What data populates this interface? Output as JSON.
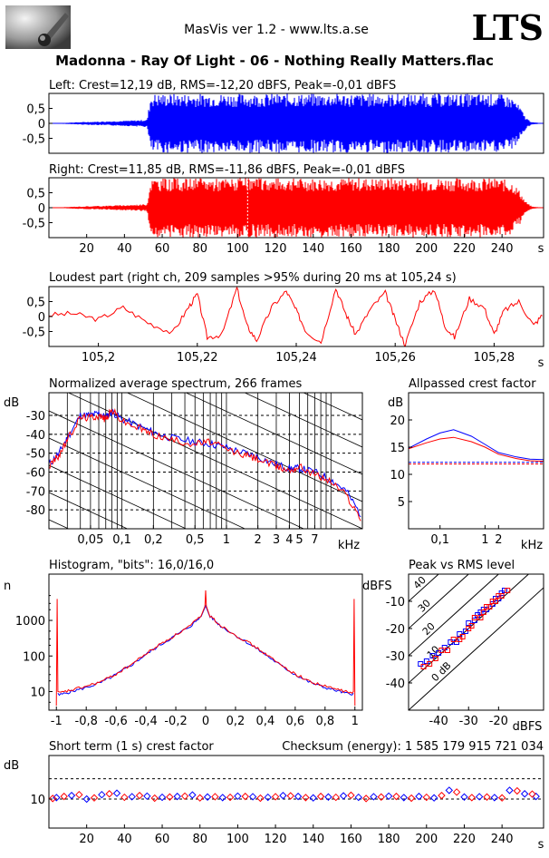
{
  "header": {
    "app_title": "MasVis ver 1.2 - www.lts.a.se",
    "brand": "LTS",
    "file_title": "Madonna - Ray Of Light - 06 - Nothing Really Matters.flac",
    "logo_icon": "microphone-photo-icon"
  },
  "colors": {
    "left": "#0000ff",
    "right": "#ff0000",
    "grid": "#000000"
  },
  "chart_data": [
    {
      "id": "left",
      "type": "area",
      "title": "Left: Crest=12,19 dB, RMS=-12,20 dBFS, Peak=-0,01 dBFS",
      "y_ticks": [
        "0,5",
        "0",
        "-0,5"
      ],
      "ylim": [
        -1,
        1
      ],
      "xlim": [
        0,
        262
      ],
      "envelope": {
        "x": [
          0,
          5,
          15,
          30,
          45,
          52,
          54,
          60,
          120,
          180,
          230,
          240,
          246,
          250,
          252,
          254,
          256,
          262
        ],
        "amp": [
          0,
          0.01,
          0.04,
          0.07,
          0.1,
          0.13,
          0.99,
          0.99,
          0.99,
          0.99,
          0.99,
          0.97,
          0.85,
          0.5,
          0.25,
          0.12,
          0.04,
          0
        ]
      }
    },
    {
      "id": "right",
      "type": "area",
      "title": "Right: Crest=11,85 dB, RMS=-11,86 dBFS, Peak=-0,01 dBFS",
      "y_ticks": [
        "0,5",
        "0",
        "-0,5"
      ],
      "x_ticks": [
        "20",
        "40",
        "60",
        "80",
        "100",
        "120",
        "140",
        "160",
        "180",
        "200",
        "220",
        "240"
      ],
      "x_tick_values": [
        20,
        40,
        60,
        80,
        100,
        120,
        140,
        160,
        180,
        200,
        220,
        240
      ],
      "x_unit": "s",
      "ylim": [
        -1,
        1
      ],
      "xlim": [
        0,
        262
      ],
      "peak_marker_x": 105.24,
      "envelope": {
        "x": [
          0,
          5,
          15,
          30,
          45,
          52,
          54,
          60,
          120,
          180,
          230,
          240,
          246,
          250,
          252,
          254,
          256,
          262
        ],
        "amp": [
          0,
          0.01,
          0.04,
          0.07,
          0.1,
          0.13,
          0.99,
          0.99,
          0.99,
          0.99,
          0.99,
          0.97,
          0.85,
          0.5,
          0.25,
          0.12,
          0.04,
          0
        ]
      }
    },
    {
      "id": "loudest",
      "type": "line",
      "title": "Loudest part (right ch, 209 samples >95% during 20 ms at 105,24 s)",
      "y_ticks": [
        "0,5",
        "0",
        "-0,5"
      ],
      "x_ticks": [
        "105,2",
        "105,22",
        "105,24",
        "105,26",
        "105,28"
      ],
      "x_tick_values": [
        105.2,
        105.22,
        105.24,
        105.26,
        105.28
      ],
      "x_unit": "s",
      "xlim": [
        105.19,
        105.29
      ],
      "ylim": [
        -1,
        1
      ],
      "x": [
        105.19,
        105.195,
        105.2,
        105.205,
        105.21,
        105.215,
        105.218,
        105.22,
        105.222,
        105.225,
        105.228,
        105.23,
        105.232,
        105.235,
        105.238,
        105.24,
        105.242,
        105.245,
        105.248,
        105.25,
        105.252,
        105.255,
        105.258,
        105.26,
        105.262,
        105.265,
        105.268,
        105.27,
        105.272,
        105.275,
        105.278,
        105.28,
        105.282,
        105.285,
        105.288,
        105.29
      ],
      "y": [
        0.05,
        0.1,
        -0.1,
        0.3,
        -0.2,
        -0.55,
        0.25,
        0.75,
        -0.7,
        -0.6,
        0.95,
        -0.3,
        -0.8,
        0.3,
        0.85,
        0.2,
        -0.5,
        -0.85,
        0.95,
        0.1,
        -0.6,
        0.25,
        0.8,
        -0.1,
        -0.95,
        0.5,
        0.9,
        -0.3,
        -0.7,
        0.6,
        0.3,
        -0.6,
        0.2,
        0.5,
        -0.3,
        0.1
      ]
    },
    {
      "id": "spectrum",
      "type": "line",
      "title": "Normalized average spectrum, 266 frames",
      "ylabel": "dB",
      "y_ticks": [
        "-30",
        "-40",
        "-50",
        "-60",
        "-70",
        "-80"
      ],
      "y_tick_values": [
        -30,
        -40,
        -50,
        -60,
        -70,
        -80
      ],
      "ylim": [
        -90,
        -18
      ],
      "x_ticks": [
        "0,05",
        "0,1",
        "0,2",
        "0,5",
        "1",
        "2",
        "3",
        "4",
        "5",
        "7"
      ],
      "x_tick_values": [
        0.05,
        0.1,
        0.2,
        0.5,
        1,
        2,
        3,
        4,
        5,
        7
      ],
      "x_unit": "kHz",
      "xlim": [
        0.02,
        20
      ],
      "series": [
        {
          "name": "",
          "color": "#0000ff",
          "x": [
            0.02,
            0.025,
            0.03,
            0.04,
            0.05,
            0.06,
            0.07,
            0.08,
            0.1,
            0.15,
            0.2,
            0.3,
            0.5,
            0.7,
            1,
            1.5,
            2,
            3,
            4,
            5,
            7,
            10,
            14,
            20
          ],
          "y": [
            -56,
            -50,
            -42,
            -30,
            -30,
            -29,
            -31,
            -28,
            -32,
            -36,
            -39,
            -42,
            -44,
            -45,
            -47,
            -50,
            -52,
            -56,
            -58,
            -58,
            -60,
            -64,
            -70,
            -84
          ]
        },
        {
          "name": "",
          "color": "#ff0000",
          "x": [
            0.02,
            0.025,
            0.03,
            0.04,
            0.05,
            0.06,
            0.07,
            0.08,
            0.1,
            0.15,
            0.2,
            0.3,
            0.5,
            0.7,
            1,
            1.5,
            2,
            3,
            4,
            5,
            7,
            10,
            14,
            20
          ],
          "y": [
            -57,
            -51,
            -43,
            -31,
            -31,
            -30,
            -32,
            -27,
            -33,
            -37,
            -40,
            -43,
            -45,
            -44,
            -48,
            -51,
            -53,
            -57,
            -59,
            -57,
            -61,
            -65,
            -72,
            -86
          ]
        }
      ]
    },
    {
      "id": "allpassed",
      "type": "line",
      "title": "Allpassed crest factor",
      "ylabel": "dB",
      "y_ticks": [
        "20",
        "15",
        "10",
        "5"
      ],
      "y_tick_values": [
        20,
        15,
        10,
        5
      ],
      "ylim": [
        0,
        25
      ],
      "x_ticks": [
        "0,1",
        "1",
        "2",
        "kHz"
      ],
      "x_tick_values": [
        0.1,
        1,
        2
      ],
      "xlim": [
        0.02,
        20
      ],
      "reference_left": 12.2,
      "reference_right": 11.9,
      "series": [
        {
          "name": "",
          "color": "#0000ff",
          "x": [
            0.02,
            0.05,
            0.1,
            0.2,
            0.5,
            1,
            2,
            5,
            10,
            20
          ],
          "y": [
            14.8,
            16.5,
            17.6,
            18.2,
            17.0,
            15.5,
            14.0,
            13.2,
            12.8,
            12.7
          ]
        },
        {
          "name": "",
          "color": "#ff0000",
          "x": [
            0.02,
            0.05,
            0.1,
            0.2,
            0.5,
            1,
            2,
            5,
            10,
            20
          ],
          "y": [
            14.7,
            15.8,
            16.5,
            16.8,
            16.0,
            15.0,
            13.7,
            12.9,
            12.5,
            12.4
          ]
        }
      ]
    },
    {
      "id": "histogram",
      "type": "line",
      "title": "Histogram, \"bits\": 16,0/16,0",
      "ylabel": "n",
      "y_ticks": [
        "1000",
        "100",
        "10"
      ],
      "y_tick_values": [
        1000,
        100,
        10
      ],
      "ylim": [
        3,
        20000
      ],
      "x_ticks": [
        "-1",
        "-0,8",
        "-0,6",
        "-0,4",
        "-0,2",
        "0",
        "0,2",
        "0,4",
        "0,6",
        "0,8",
        "1"
      ],
      "x_tick_values": [
        -1,
        -0.8,
        -0.6,
        -0.4,
        -0.2,
        0,
        0.2,
        0.4,
        0.6,
        0.8,
        1
      ],
      "xlim": [
        -1.05,
        1.05
      ],
      "series": [
        {
          "name": "",
          "color": "#0000ff",
          "x": [
            -0.99,
            -0.98,
            -0.9,
            -0.8,
            -0.7,
            -0.6,
            -0.5,
            -0.4,
            -0.3,
            -0.2,
            -0.1,
            -0.03,
            0,
            0.03,
            0.1,
            0.2,
            0.3,
            0.4,
            0.5,
            0.6,
            0.7,
            0.8,
            0.9,
            0.98,
            0.99
          ],
          "y": [
            9,
            8,
            10,
            13,
            18,
            30,
            55,
            110,
            210,
            380,
            700,
            1300,
            2600,
            1300,
            700,
            380,
            210,
            110,
            55,
            30,
            18,
            13,
            10,
            8,
            9
          ]
        },
        {
          "name": "",
          "color": "#ff0000",
          "x": [
            -1,
            -0.995,
            -0.99,
            -0.98,
            -0.9,
            -0.8,
            -0.7,
            -0.6,
            -0.5,
            -0.4,
            -0.3,
            -0.2,
            -0.1,
            -0.03,
            -0.005,
            0,
            0.005,
            0.03,
            0.1,
            0.2,
            0.3,
            0.4,
            0.5,
            0.6,
            0.7,
            0.8,
            0.9,
            0.98,
            0.99,
            0.995,
            1
          ],
          "y": [
            4,
            4000,
            10,
            9,
            11,
            14,
            19,
            31,
            57,
            115,
            220,
            390,
            720,
            1350,
            2500,
            7000,
            2500,
            1350,
            720,
            390,
            220,
            115,
            57,
            31,
            19,
            14,
            11,
            9,
            10,
            4000,
            4
          ]
        }
      ]
    },
    {
      "id": "peakrms",
      "type": "scatter",
      "title": "Peak vs RMS level",
      "ylabel": "dBFS",
      "xlabel": "dBFS",
      "y_ticks": [
        "-10",
        "-20",
        "-30",
        "-40"
      ],
      "y_tick_values": [
        -10,
        -20,
        -30,
        -40
      ],
      "ylim": [
        -50,
        0
      ],
      "x_ticks": [
        "-40",
        "-30",
        "-20"
      ],
      "x_tick_values": [
        -40,
        -30,
        -20
      ],
      "xlim": [
        -50,
        -5
      ],
      "diagonal_labels": [
        "40",
        "30",
        "20",
        "10",
        "0 dB"
      ],
      "diagonal_offsets": [
        40,
        30,
        20,
        10,
        0
      ],
      "series": [
        {
          "name": "",
          "color": "#0000ff",
          "marker": "square",
          "x": [
            -46,
            -44,
            -42,
            -40,
            -38,
            -36,
            -34,
            -33,
            -31,
            -30,
            -28,
            -27,
            -26,
            -25,
            -24,
            -22,
            -21,
            -20,
            -19,
            -18
          ],
          "y": [
            -33,
            -32,
            -30,
            -29,
            -27,
            -25,
            -25,
            -22,
            -21,
            -18,
            -17,
            -15,
            -14,
            -13,
            -13,
            -11,
            -9,
            -9,
            -7,
            -6
          ]
        },
        {
          "name": "",
          "color": "#ff0000",
          "marker": "square",
          "x": [
            -45,
            -43,
            -41,
            -39,
            -37,
            -35,
            -33,
            -32,
            -30,
            -29,
            -28,
            -26,
            -25,
            -24,
            -23,
            -22,
            -21,
            -20,
            -19,
            -17
          ],
          "y": [
            -34,
            -33,
            -31,
            -28,
            -28,
            -24,
            -24,
            -23,
            -20,
            -19,
            -16,
            -16,
            -14,
            -12,
            -12,
            -10,
            -10,
            -8,
            -8,
            -6
          ]
        }
      ]
    },
    {
      "id": "shortterm",
      "type": "scatter",
      "title": "Short term (1 s) crest factor",
      "checksum": "Checksum (energy):  1 585 179 915 721 034",
      "ylabel": "dB",
      "y_ticks": [
        "10"
      ],
      "y_tick_values": [
        10
      ],
      "ylim": [
        0,
        25
      ],
      "x_ticks": [
        "20",
        "40",
        "60",
        "80",
        "100",
        "120",
        "140",
        "160",
        "180",
        "200",
        "220",
        "240"
      ],
      "x_tick_values": [
        20,
        40,
        60,
        80,
        100,
        120,
        140,
        160,
        180,
        200,
        220,
        240
      ],
      "x_unit": "s",
      "xlim": [
        0,
        262
      ],
      "reference_line": 17,
      "series": [
        {
          "name": "",
          "color": "#0000ff",
          "marker": "diamond",
          "x": [
            4,
            12,
            20,
            28,
            36,
            44,
            52,
            60,
            68,
            76,
            84,
            92,
            100,
            108,
            116,
            124,
            132,
            140,
            148,
            156,
            164,
            172,
            180,
            188,
            196,
            204,
            212,
            220,
            228,
            236,
            244,
            252,
            258
          ],
          "y": [
            10.5,
            11.2,
            10.0,
            11.5,
            12.0,
            10.8,
            11.0,
            10.6,
            10.9,
            11.4,
            10.7,
            10.5,
            11.0,
            10.8,
            10.6,
            11.2,
            10.9,
            10.4,
            10.7,
            11.1,
            10.6,
            10.8,
            11.0,
            10.5,
            10.9,
            10.4,
            13.0,
            10.7,
            10.8,
            10.5,
            13.0,
            11.8,
            10.9
          ]
        },
        {
          "name": "",
          "color": "#ff0000",
          "marker": "diamond",
          "x": [
            2,
            8,
            16,
            24,
            32,
            40,
            48,
            56,
            64,
            72,
            80,
            88,
            96,
            104,
            112,
            120,
            128,
            136,
            144,
            152,
            160,
            168,
            176,
            184,
            192,
            200,
            208,
            216,
            224,
            232,
            240,
            248,
            256
          ],
          "y": [
            10.2,
            10.9,
            11.5,
            10.4,
            11.8,
            10.6,
            11.2,
            10.3,
            10.7,
            11.0,
            10.4,
            10.8,
            10.6,
            10.9,
            10.3,
            10.8,
            11.1,
            10.5,
            10.9,
            10.6,
            11.3,
            10.2,
            10.7,
            10.9,
            10.3,
            10.6,
            11.2,
            12.4,
            10.5,
            10.7,
            10.4,
            12.8,
            11.7
          ]
        }
      ]
    }
  ]
}
